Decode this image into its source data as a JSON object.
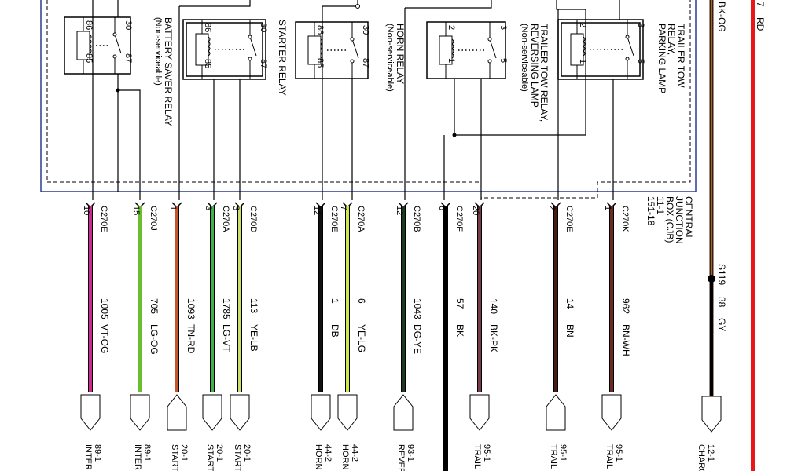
{
  "relays": [
    {
      "name": "BATTERY SAVER RELAY",
      "note": "(Non-serviceable)",
      "pins": [
        "86",
        "30",
        "85",
        "87"
      ]
    },
    {
      "name": "STARTER RELAY",
      "note": "",
      "pins": [
        "86",
        "30",
        "85",
        "87"
      ]
    },
    {
      "name": "HORN RELAY",
      "note": "(Non-serviceable)",
      "pins": [
        "86",
        "30",
        "85",
        "87"
      ]
    },
    {
      "name": "TRAILER TOW RELAY,",
      "name2": "REVERSING LAMP",
      "note": "(Non-serviceable)",
      "pins": [
        "2",
        "3",
        "1",
        "5"
      ]
    },
    {
      "name": "TRAILER TOW",
      "name2": "RELAY,",
      "name3": "PARKING LAMP",
      "note": "",
      "pins": [
        "2",
        "3",
        "1",
        "5"
      ]
    }
  ],
  "cjb": {
    "line1": "CENTRAL",
    "line2": "JUNCTION",
    "line3": "BOX (CJB)",
    "line4": "11-1",
    "line5": "151-18"
  },
  "wires": [
    {
      "connector": "C270E",
      "pin": "10",
      "circuit": "1005",
      "color_code": "VT-OG",
      "color": "#d0268f",
      "dest_code": "89-1",
      "dest": "INTER"
    },
    {
      "connector": "C270J",
      "pin": "15",
      "circuit": "705",
      "color_code": "LG-OG",
      "color": "#6bbf2e",
      "dest_code": "89-1",
      "dest": "INTER"
    },
    {
      "connector": "",
      "pin": "1",
      "circuit": "1093",
      "color_code": "TN-RD",
      "color": "#c8552a",
      "dest_code": "20-1",
      "dest": "START"
    },
    {
      "connector": "C270A",
      "pin": "3",
      "circuit": "1785",
      "color_code": "LG-VT",
      "color": "#3fb04a",
      "dest_code": "20-1",
      "dest": "START"
    },
    {
      "connector": "C270D",
      "pin": "3",
      "circuit": "113",
      "color_code": "YE-LB",
      "color": "#c9e06a",
      "dest_code": "20-1",
      "dest": "START"
    },
    {
      "connector": "C270E",
      "pin": "12",
      "circuit": "1",
      "color_code": "DB",
      "color": "#111111",
      "dest_code": "44-2",
      "dest": "HORN"
    },
    {
      "connector": "C270A",
      "pin": "7",
      "circuit": "6",
      "color_code": "YE-LG",
      "color": "#cfe84a",
      "dest_code": "44-2",
      "dest": "HORN"
    },
    {
      "connector": "C270B",
      "pin": "12",
      "circuit": "1043",
      "color_code": "DG-YE",
      "color": "#1e3b1e",
      "dest_code": "93-1",
      "dest": "REVER"
    },
    {
      "connector": "C270F",
      "pin": "6",
      "circuit": "57",
      "color_code": "BK",
      "color": "#000000",
      "dest_code": "",
      "dest": ""
    },
    {
      "connector": "",
      "pin": "20",
      "circuit": "140",
      "color_code": "BK-PK",
      "color": "#7a3a48",
      "dest_code": "95-1",
      "dest": "TRAIL"
    },
    {
      "connector": "C270E",
      "pin": "2",
      "circuit": "14",
      "color_code": "BN",
      "color": "#4a1a12",
      "dest_code": "95-1",
      "dest": "TRAIL"
    },
    {
      "connector": "C270K",
      "pin": "1",
      "circuit": "962",
      "color_code": "BN-WH",
      "color": "#6a2a22",
      "dest_code": "95-1",
      "dest": "TRAIL"
    }
  ],
  "right_side": {
    "top_label": "BK-OG",
    "splice": "S119",
    "circuit": "38",
    "color_code": "GY",
    "dest_code": "12-1",
    "dest": "CHARG",
    "rd_pin": "7",
    "rd_label": "RD"
  }
}
